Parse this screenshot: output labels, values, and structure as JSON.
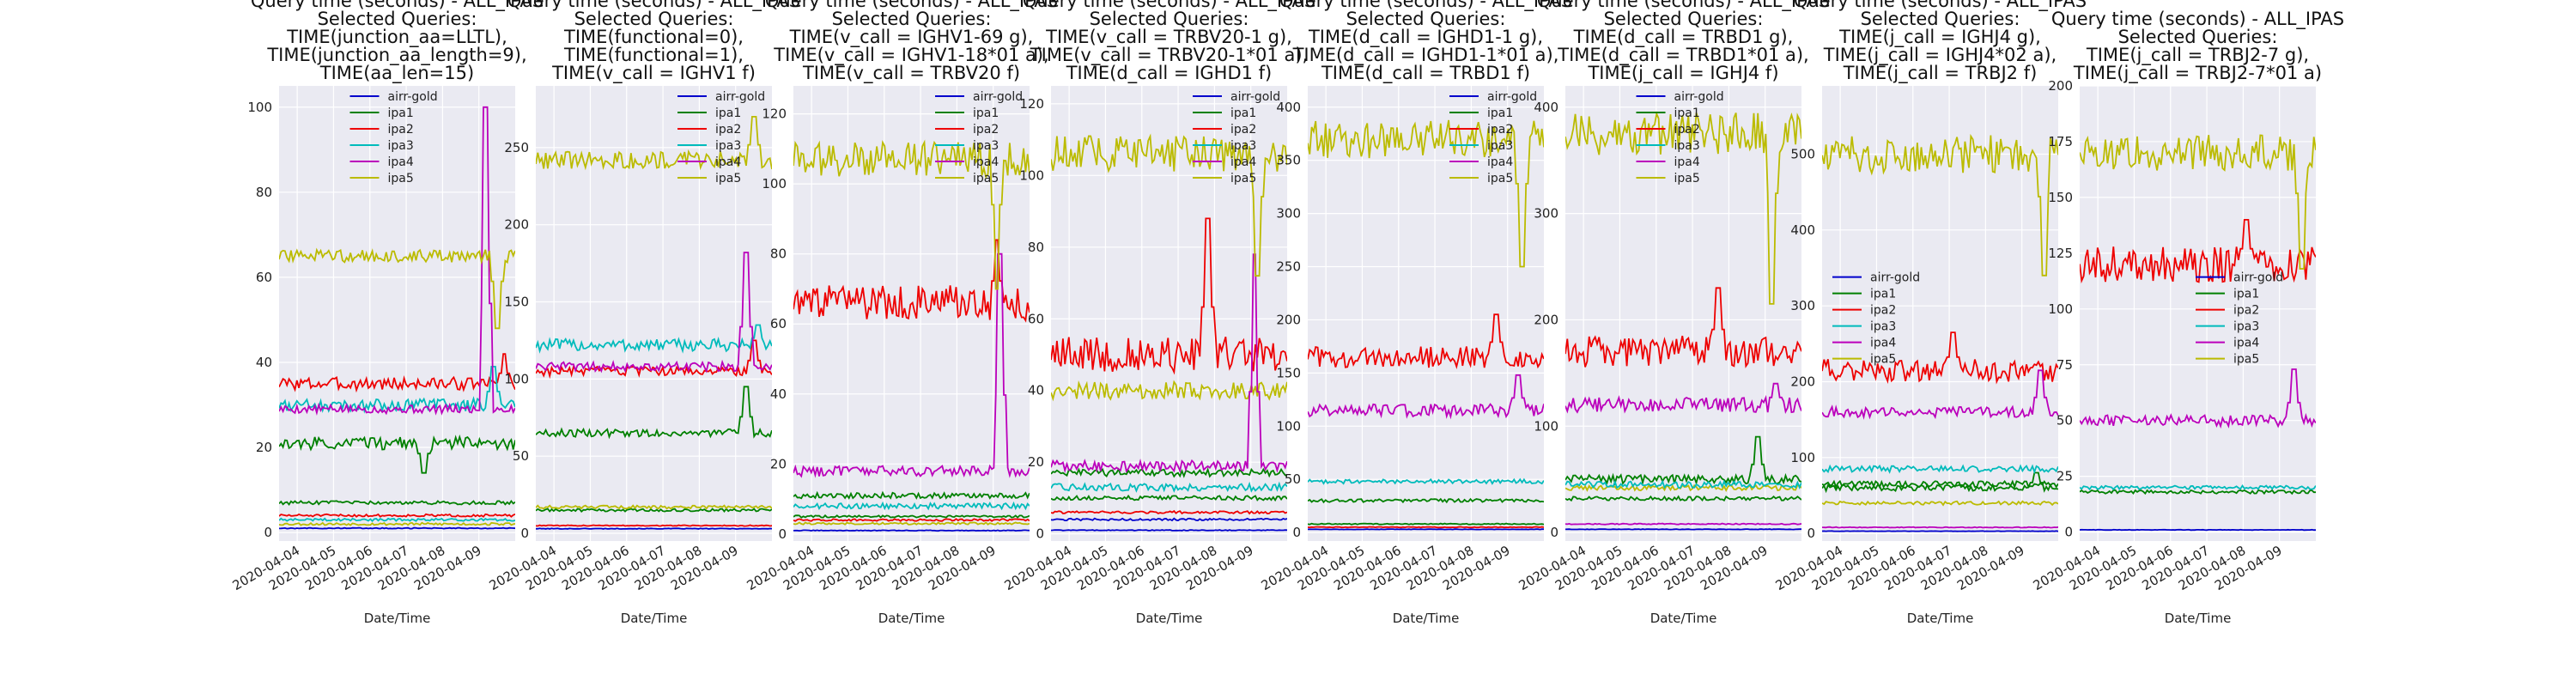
{
  "figure": {
    "series_colors": {
      "airr-gold": "#0000cc",
      "ipa1": "#008000",
      "ipa2": "#ee0000",
      "ipa3": "#00bbbb",
      "ipa4": "#bb00bb",
      "ipa5": "#bbbb00"
    },
    "plot_background": "#eaeaf2"
  },
  "chart_data": [
    {
      "type": "line",
      "title": [
        "Query time (seconds) - ALL_IPAS",
        "Selected Queries:",
        "TIME(junction_aa=LLTL),",
        "TIME(junction_aa_length=9),",
        "TIME(aa_len=15)"
      ],
      "xlabel": "Date/Time",
      "ylabel": "",
      "x_ticks": [
        "2020-04-04",
        "2020-04-05",
        "2020-04-06",
        "2020-04-07",
        "2020-04-08",
        "2020-04-09"
      ],
      "x_range": [
        "2020-04-03 12:00",
        "2020-04-10 00:00"
      ],
      "y_ticks": [
        0,
        20,
        40,
        60,
        80,
        100
      ],
      "ylim": [
        -2,
        105
      ],
      "grid": true,
      "legend_position": "upper-center",
      "series": [
        {
          "name": "airr-gold",
          "color": "#0000cc",
          "level": 1,
          "spikes": [],
          "volatility": 0.1
        },
        {
          "name": "ipa1",
          "color": "#008000",
          "level": 21,
          "spikes": [
            {
              "x": 4.0,
              "value": 14
            }
          ],
          "volatility": 1.5
        },
        {
          "name": "ipa2",
          "color": "#ee0000",
          "level": 35,
          "spikes": [
            {
              "x": 6.2,
              "value": 42
            }
          ],
          "volatility": 1.5
        },
        {
          "name": "ipa3",
          "color": "#00bbbb",
          "level": 30,
          "spikes": [
            {
              "x": 5.9,
              "value": 39
            }
          ],
          "volatility": 1.5
        },
        {
          "name": "ipa4",
          "color": "#bb00bb",
          "level": 29,
          "spikes": [
            {
              "x": 5.7,
              "value": 100
            }
          ],
          "volatility": 1.0
        },
        {
          "name": "ipa5",
          "color": "#bbbb00",
          "level": 65,
          "spikes": [
            {
              "x": 6.0,
              "value": 48
            }
          ],
          "volatility": 1.5
        }
      ],
      "extra_series": [
        {
          "color": "#008000",
          "level": 7
        },
        {
          "color": "#ee0000",
          "level": 4
        },
        {
          "color": "#00bbbb",
          "level": 3
        },
        {
          "color": "#bbbb00",
          "level": 2
        }
      ]
    },
    {
      "type": "line",
      "title": [
        "Query time (seconds) - ALL_IPAS",
        "Selected Queries:",
        "TIME(functional=0),",
        "TIME(functional=1),",
        "TIME(v_call = IGHV1 f)"
      ],
      "xlabel": "Date/Time",
      "ylabel": "",
      "x_ticks": [
        "2020-04-04",
        "2020-04-05",
        "2020-04-06",
        "2020-04-07",
        "2020-04-08",
        "2020-04-09"
      ],
      "x_range": [
        "2020-04-03 12:00",
        "2020-04-10 00:00"
      ],
      "y_ticks": [
        0,
        50,
        100,
        150,
        200,
        250
      ],
      "ylim": [
        -5,
        290
      ],
      "grid": true,
      "legend_position": "upper-right",
      "series": [
        {
          "name": "airr-gold",
          "color": "#0000cc",
          "level": 3,
          "spikes": [],
          "volatility": 0.2
        },
        {
          "name": "ipa1",
          "color": "#008000",
          "level": 65,
          "spikes": [
            {
              "x": 5.8,
              "value": 95
            }
          ],
          "volatility": 2.5
        },
        {
          "name": "ipa2",
          "color": "#ee0000",
          "level": 105,
          "spikes": [
            {
              "x": 6.0,
              "value": 125
            }
          ],
          "volatility": 3.0
        },
        {
          "name": "ipa3",
          "color": "#00bbbb",
          "level": 122,
          "spikes": [
            {
              "x": 6.1,
              "value": 135
            }
          ],
          "volatility": 4.0
        },
        {
          "name": "ipa4",
          "color": "#bb00bb",
          "level": 108,
          "spikes": [
            {
              "x": 5.8,
              "value": 182
            }
          ],
          "volatility": 3.0
        },
        {
          "name": "ipa5",
          "color": "#bbbb00",
          "level": 242,
          "spikes": [
            {
              "x": 6.0,
              "value": 270
            }
          ],
          "volatility": 6.0
        }
      ],
      "extra_series": [
        {
          "color": "#008000",
          "level": 15
        },
        {
          "color": "#bbbb00",
          "level": 17
        },
        {
          "color": "#ee0000",
          "level": 5
        }
      ]
    },
    {
      "type": "line",
      "title": [
        "Query time (seconds) - ALL_IPAS",
        "Selected Queries:",
        "TIME(v_call = IGHV1-69 g),",
        "TIME(v_call = IGHV1-18*01 a),",
        "TIME(v_call = TRBV20 f)"
      ],
      "xlabel": "Date/Time",
      "ylabel": "",
      "x_ticks": [
        "2020-04-04",
        "2020-04-05",
        "2020-04-06",
        "2020-04-07",
        "2020-04-08",
        "2020-04-09"
      ],
      "x_range": [
        "2020-04-03 12:00",
        "2020-04-10 00:00"
      ],
      "y_ticks": [
        0,
        20,
        40,
        60,
        80,
        100,
        120
      ],
      "ylim": [
        -2,
        128
      ],
      "grid": true,
      "legend_position": "upper-right",
      "series": [
        {
          "name": "airr-gold",
          "color": "#0000cc",
          "level": 1,
          "spikes": [],
          "volatility": 0.1
        },
        {
          "name": "ipa1",
          "color": "#008000",
          "level": 11,
          "spikes": [],
          "volatility": 0.8
        },
        {
          "name": "ipa2",
          "color": "#ee0000",
          "level": 66,
          "spikes": [
            {
              "x": 5.6,
              "value": 84
            }
          ],
          "volatility": 5.0
        },
        {
          "name": "ipa3",
          "color": "#00bbbb",
          "level": 8,
          "spikes": [],
          "volatility": 0.8
        },
        {
          "name": "ipa4",
          "color": "#bb00bb",
          "level": 18,
          "spikes": [
            {
              "x": 5.7,
              "value": 80
            }
          ],
          "volatility": 1.5
        },
        {
          "name": "ipa5",
          "color": "#bbbb00",
          "level": 107,
          "spikes": [
            {
              "x": 5.6,
              "value": 70
            }
          ],
          "volatility": 5.0
        }
      ],
      "extra_series": [
        {
          "color": "#008000",
          "level": 5
        },
        {
          "color": "#ee0000",
          "level": 4
        },
        {
          "color": "#bbbb00",
          "level": 3
        }
      ]
    },
    {
      "type": "line",
      "title": [
        "Query time (seconds) - ALL_IPAS",
        "Selected Queries:",
        "TIME(v_call = TRBV20-1 g),",
        "TIME(v_call = TRBV20-1*01  a),",
        "TIME(d_call = IGHD1 f)"
      ],
      "xlabel": "Date/Time",
      "ylabel": "",
      "x_ticks": [
        "2020-04-04",
        "2020-04-05",
        "2020-04-06",
        "2020-04-07",
        "2020-04-08",
        "2020-04-09"
      ],
      "x_range": [
        "2020-04-03 12:00",
        "2020-04-10 00:00"
      ],
      "y_ticks": [
        0,
        20,
        40,
        60,
        80,
        100,
        120
      ],
      "ylim": [
        -2,
        125
      ],
      "grid": true,
      "legend_position": "upper-right",
      "series": [
        {
          "name": "airr-gold",
          "color": "#0000cc",
          "level": 1,
          "spikes": [],
          "volatility": 0.1
        },
        {
          "name": "ipa1",
          "color": "#008000",
          "level": 17,
          "spikes": [],
          "volatility": 1.0
        },
        {
          "name": "ipa2",
          "color": "#ee0000",
          "level": 50,
          "spikes": [
            {
              "x": 4.3,
              "value": 88
            }
          ],
          "volatility": 5.0
        },
        {
          "name": "ipa3",
          "color": "#00bbbb",
          "level": 13,
          "spikes": [],
          "volatility": 1.0
        },
        {
          "name": "ipa4",
          "color": "#bb00bb",
          "level": 19,
          "spikes": [
            {
              "x": 5.6,
              "value": 78
            }
          ],
          "volatility": 1.5
        },
        {
          "name": "ipa5",
          "color": "#bbbb00",
          "level": 106,
          "spikes": [
            {
              "x": 5.7,
              "value": 72
            }
          ],
          "volatility": 5.0
        }
      ],
      "extra_series": [
        {
          "color": "#bbbb00",
          "level": 40
        },
        {
          "color": "#008000",
          "level": 10
        },
        {
          "color": "#ee0000",
          "level": 6
        },
        {
          "color": "#0000cc",
          "level": 4
        }
      ]
    },
    {
      "type": "line",
      "title": [
        "Query time (seconds) - ALL_IPAS",
        "Selected Queries:",
        "TIME(d_call = IGHD1-1 g),",
        "TIME(d_call = IGHD1-1*01 a),",
        "TIME(d_call = TRBD1 f)"
      ],
      "xlabel": "Date/Time",
      "ylabel": "",
      "x_ticks": [
        "2020-04-04",
        "2020-04-05",
        "2020-04-06",
        "2020-04-07",
        "2020-04-08",
        "2020-04-09"
      ],
      "x_range": [
        "2020-04-03 12:00",
        "2020-04-10 00:00"
      ],
      "y_ticks": [
        0,
        50,
        100,
        150,
        200,
        250,
        300,
        350,
        400
      ],
      "ylim": [
        -8,
        420
      ],
      "grid": true,
      "legend_position": "upper-right",
      "series": [
        {
          "name": "airr-gold",
          "color": "#0000cc",
          "level": 3,
          "spikes": [],
          "volatility": 0.2
        },
        {
          "name": "ipa1",
          "color": "#008000",
          "level": 30,
          "spikes": [],
          "volatility": 1.5
        },
        {
          "name": "ipa2",
          "color": "#ee0000",
          "level": 165,
          "spikes": [
            {
              "x": 5.2,
              "value": 205
            }
          ],
          "volatility": 10.0
        },
        {
          "name": "ipa3",
          "color": "#00bbbb",
          "level": 48,
          "spikes": [],
          "volatility": 2.0
        },
        {
          "name": "ipa4",
          "color": "#bb00bb",
          "level": 115,
          "spikes": [
            {
              "x": 5.8,
              "value": 148
            }
          ],
          "volatility": 6.0
        },
        {
          "name": "ipa5",
          "color": "#bbbb00",
          "level": 370,
          "spikes": [
            {
              "x": 5.9,
              "value": 250
            }
          ],
          "volatility": 18.0
        }
      ],
      "extra_series": [
        {
          "color": "#008000",
          "level": 8
        },
        {
          "color": "#ee0000",
          "level": 5
        }
      ]
    },
    {
      "type": "line",
      "title": [
        "Query time (seconds) - ALL_IPAS",
        "Selected Queries:",
        "TIME(d_call = TRBD1 g),",
        "TIME(d_call = TRBD1*01 a),",
        "TIME(j_call = IGHJ4 f)"
      ],
      "xlabel": "Date/Time",
      "ylabel": "",
      "x_ticks": [
        "2020-04-04",
        "2020-04-05",
        "2020-04-06",
        "2020-04-07",
        "2020-04-08",
        "2020-04-09"
      ],
      "x_range": [
        "2020-04-03 12:00",
        "2020-04-10 00:00"
      ],
      "y_ticks": [
        0,
        100,
        200,
        300,
        400
      ],
      "ylim": [
        -8,
        420
      ],
      "grid": true,
      "legend_position": "upper-center",
      "series": [
        {
          "name": "airr-gold",
          "color": "#0000cc",
          "level": 3,
          "spikes": [],
          "volatility": 0.2
        },
        {
          "name": "ipa1",
          "color": "#008000",
          "level": 50,
          "spikes": [
            {
              "x": 5.3,
              "value": 90
            }
          ],
          "volatility": 4.0
        },
        {
          "name": "ipa2",
          "color": "#ee0000",
          "level": 170,
          "spikes": [
            {
              "x": 4.2,
              "value": 230
            }
          ],
          "volatility": 15.0
        },
        {
          "name": "ipa3",
          "color": "#00bbbb",
          "level": 45,
          "spikes": [],
          "volatility": 3.0
        },
        {
          "name": "ipa4",
          "color": "#bb00bb",
          "level": 120,
          "spikes": [
            {
              "x": 5.8,
              "value": 140
            }
          ],
          "volatility": 7.0
        },
        {
          "name": "ipa5",
          "color": "#bbbb00",
          "level": 375,
          "spikes": [
            {
              "x": 5.7,
              "value": 215
            }
          ],
          "volatility": 20.0
        }
      ],
      "extra_series": [
        {
          "color": "#008000",
          "level": 32
        },
        {
          "color": "#bbbb00",
          "level": 42
        },
        {
          "color": "#bb00bb",
          "level": 8
        }
      ]
    },
    {
      "type": "line",
      "title": [
        "Query time (seconds) - ALL_IPAS",
        "Selected Queries:",
        "TIME(j_call = IGHJ4 g),",
        "TIME(j_call = IGHJ4*02 a),",
        "TIME(j_call = TRBJ2 f)"
      ],
      "xlabel": "Date/Time",
      "ylabel": "",
      "x_ticks": [
        "2020-04-04",
        "2020-04-05",
        "2020-04-06",
        "2020-04-07",
        "2020-04-08",
        "2020-04-09"
      ],
      "x_range": [
        "2020-04-03 12:00",
        "2020-04-10 00:00"
      ],
      "y_ticks": [
        0,
        100,
        200,
        300,
        400,
        500
      ],
      "ylim": [
        -10,
        590
      ],
      "grid": true,
      "legend_position": "center-left",
      "series": [
        {
          "name": "airr-gold",
          "color": "#0000cc",
          "level": 3,
          "spikes": [],
          "volatility": 0.2
        },
        {
          "name": "ipa1",
          "color": "#008000",
          "level": 60,
          "spikes": [
            {
              "x": 5.9,
              "value": 80
            }
          ],
          "volatility": 4.0
        },
        {
          "name": "ipa2",
          "color": "#ee0000",
          "level": 215,
          "spikes": [
            {
              "x": 3.6,
              "value": 265
            }
          ],
          "volatility": 15.0
        },
        {
          "name": "ipa3",
          "color": "#00bbbb",
          "level": 85,
          "spikes": [],
          "volatility": 4.0
        },
        {
          "name": "ipa4",
          "color": "#bb00bb",
          "level": 160,
          "spikes": [
            {
              "x": 6.0,
              "value": 215
            }
          ],
          "volatility": 7.0
        },
        {
          "name": "ipa5",
          "color": "#bbbb00",
          "level": 500,
          "spikes": [
            {
              "x": 6.1,
              "value": 340
            }
          ],
          "volatility": 25.0
        }
      ],
      "extra_series": [
        {
          "color": "#bbbb00",
          "level": 40
        },
        {
          "color": "#008000",
          "level": 65
        },
        {
          "color": "#bb00bb",
          "level": 8
        }
      ]
    },
    {
      "type": "line",
      "title": [
        "Query time (seconds) - ALL_IPAS",
        "Selected Queries:",
        "TIME(j_call = TRBJ2-7 g),",
        "TIME(j_call = TRBJ2-7*01 a)"
      ],
      "xlabel": "Date/Time",
      "ylabel": "",
      "x_ticks": [
        "2020-04-04",
        "2020-04-05",
        "2020-04-06",
        "2020-04-07",
        "2020-04-08",
        "2020-04-09"
      ],
      "x_range": [
        "2020-04-03 12:00",
        "2020-04-10 00:00"
      ],
      "y_ticks": [
        0,
        25,
        50,
        75,
        100,
        125,
        150,
        175,
        200
      ],
      "ylim": [
        -4,
        200
      ],
      "grid": true,
      "legend_position": "center-right",
      "series": [
        {
          "name": "airr-gold",
          "color": "#0000cc",
          "level": 1,
          "spikes": [],
          "volatility": 0.1
        },
        {
          "name": "ipa1",
          "color": "#008000",
          "level": 18,
          "spikes": [],
          "volatility": 0.8
        },
        {
          "name": "ipa2",
          "color": "#ee0000",
          "level": 120,
          "spikes": [
            {
              "x": 4.6,
              "value": 140
            }
          ],
          "volatility": 8.0
        },
        {
          "name": "ipa3",
          "color": "#00bbbb",
          "level": 20,
          "spikes": [],
          "volatility": 0.8
        },
        {
          "name": "ipa4",
          "color": "#bb00bb",
          "level": 50,
          "spikes": [
            {
              "x": 5.9,
              "value": 73
            }
          ],
          "volatility": 2.5
        },
        {
          "name": "ipa5",
          "color": "#bbbb00",
          "level": 170,
          "spikes": [
            {
              "x": 6.1,
              "value": 118
            }
          ],
          "volatility": 8.0
        }
      ],
      "extra_series": []
    }
  ]
}
